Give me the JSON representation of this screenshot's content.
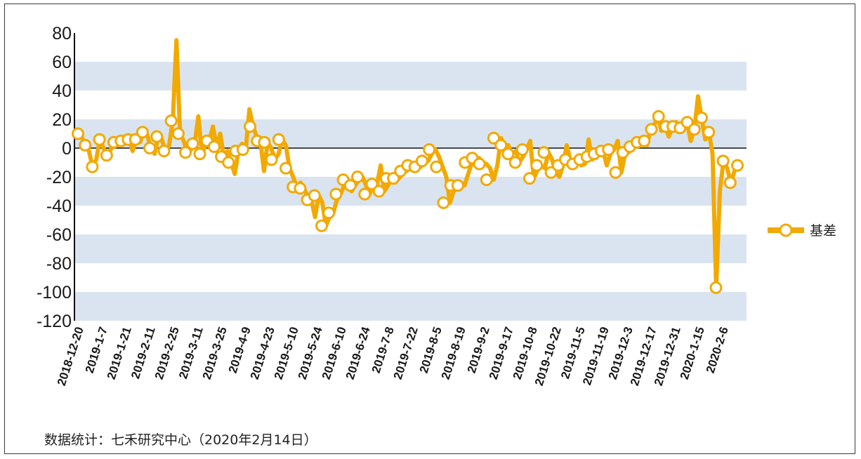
{
  "chart_data": {
    "type": "line",
    "y_ticks": [
      80,
      60,
      40,
      20,
      0,
      -20,
      -40,
      -60,
      -80,
      -100,
      -120
    ],
    "ylim": [
      -120,
      80
    ],
    "x_ticks": [
      "2018-12-20",
      "2019-1-7",
      "2019-1-21",
      "2019-2-11",
      "2019-2-25",
      "2019-3-11",
      "2019-3-25",
      "2019-4-9",
      "2019-4-23",
      "2019-5-10",
      "2019-5-24",
      "2019-6-10",
      "2019-6-24",
      "2019-7-8",
      "2019-7-22",
      "2019-8-5",
      "2019-8-19",
      "2019-9-2",
      "2019-9-17",
      "2019-10-8",
      "2019-10-22",
      "2019-11-5",
      "2019-11-19",
      "2019-12-3",
      "2019-12-17",
      "2019-12-31",
      "2020-1-15",
      "2020-2-6"
    ],
    "legend": {
      "label": "基差",
      "position": "right"
    },
    "series": [
      {
        "name": "基差",
        "line_color": "#f2a900",
        "marker_fill": "#ffffff",
        "marker_stroke": "#f2a900",
        "markers": [
          10,
          2,
          -13,
          6,
          -5,
          4,
          5,
          6,
          6,
          11,
          0,
          8,
          -2,
          19,
          10,
          -3,
          3,
          -4,
          5,
          1,
          -6,
          -10,
          -2,
          -1,
          15,
          5,
          4,
          -8,
          6,
          -14,
          -27,
          -28,
          -36,
          -33,
          -54,
          -45,
          -32,
          -22,
          -26,
          -20,
          -32,
          -25,
          -30,
          -21,
          -21,
          -16,
          -12,
          -13,
          -9,
          -1,
          -13,
          -38,
          -26,
          -26,
          -10,
          -7,
          -11,
          -22,
          7,
          2,
          -4,
          -10,
          -1,
          -21,
          -12,
          -3,
          -17,
          -12,
          -8,
          -11,
          -8,
          -6,
          -4,
          -2,
          -1,
          -17,
          -3,
          1,
          4,
          5,
          13,
          22,
          15,
          15,
          14,
          18,
          13,
          21,
          11,
          -97,
          -9,
          -24,
          -12
        ],
        "line": [
          10,
          8,
          2,
          -2,
          -13,
          -8,
          6,
          0,
          -5,
          -1,
          4,
          2,
          5,
          3,
          6,
          -2,
          6,
          4,
          11,
          9,
          0,
          -4,
          8,
          6,
          -2,
          2,
          19,
          75,
          10,
          5,
          -3,
          -1,
          3,
          22,
          -4,
          2,
          5,
          15,
          1,
          10,
          -6,
          -2,
          -10,
          -18,
          -2,
          3,
          -1,
          27,
          15,
          8,
          5,
          -16,
          4,
          0,
          -8,
          -4,
          6,
          2,
          -14,
          -20,
          -27,
          -24,
          -28,
          -34,
          -36,
          -48,
          -33,
          -38,
          -54,
          -48,
          -45,
          -36,
          -32,
          -26,
          -22,
          -30,
          -26,
          -22,
          -20,
          -26,
          -32,
          -24,
          -25,
          -12,
          -30,
          -26,
          -21,
          -24,
          -21,
          -18,
          -16,
          -14,
          -12,
          -10,
          -13,
          -8,
          -9,
          -4,
          -1,
          -6,
          -13,
          -20,
          -38,
          -30,
          -26,
          -24,
          -26,
          -18,
          -10,
          -12,
          -7,
          -10,
          -11,
          -14,
          -22,
          -12,
          7,
          2,
          2,
          -4,
          -2,
          -10,
          -6,
          -1,
          5,
          -21,
          -15,
          -12,
          -14,
          -3,
          -8,
          -17,
          -20,
          -12,
          2,
          -8,
          -10,
          -8,
          -12,
          -11,
          6,
          -8,
          -6,
          -4,
          -2,
          -12,
          -4,
          -1,
          5,
          -17,
          -4,
          -3,
          1,
          4,
          4,
          5,
          2,
          13,
          16,
          22,
          12,
          15,
          8,
          15,
          18,
          14,
          12,
          18,
          5,
          13,
          36,
          21,
          6,
          11,
          -4,
          -97,
          -30,
          -9,
          -14,
          -24,
          -16,
          -12
        ]
      }
    ]
  },
  "footer": {
    "source": "数据统计：七禾研究中心（2020年2月14日）"
  }
}
